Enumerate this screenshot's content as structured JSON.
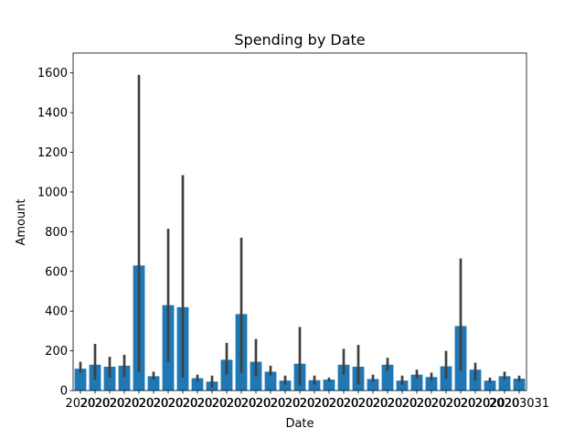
{
  "chart_data": {
    "type": "bar",
    "title": "Spending by Date",
    "xlabel": "Date",
    "ylabel": "Amount",
    "ylim": [
      0,
      1700
    ],
    "yticks": [
      0,
      200,
      400,
      600,
      800,
      1000,
      1200,
      1400,
      1600
    ],
    "bar_color": "#1f77b4",
    "errorbar_color": "#404040",
    "grid": false,
    "legend": "none",
    "xtick_labels_overlapping": [
      "2020",
      "2020",
      "2020",
      "2020",
      "2020",
      "2020",
      "2020",
      "2020",
      "2020",
      "2020",
      "2020",
      "2020",
      "2020",
      "2020",
      "2020",
      "2020",
      "2020",
      "2020",
      "2020",
      "2020",
      "2020",
      "2020",
      "2020",
      "2020",
      "2020",
      "2020",
      "2020",
      "2020",
      "2020",
      "2020",
      "2020"
    ],
    "x_last_visible_fragment": "3031",
    "values": [
      110,
      130,
      120,
      125,
      630,
      72,
      430,
      420,
      62,
      45,
      155,
      385,
      145,
      95,
      50,
      135,
      52,
      55,
      130,
      120,
      58,
      130,
      50,
      80,
      68,
      122,
      325,
      105,
      50,
      72,
      60
    ],
    "ci_low": [
      90,
      55,
      65,
      70,
      95,
      55,
      145,
      65,
      45,
      15,
      80,
      90,
      70,
      75,
      30,
      25,
      30,
      45,
      80,
      30,
      45,
      100,
      30,
      60,
      50,
      60,
      100,
      50,
      40,
      55,
      45
    ],
    "ci_high": [
      145,
      235,
      170,
      180,
      1590,
      95,
      815,
      1085,
      80,
      75,
      240,
      770,
      260,
      125,
      75,
      320,
      75,
      65,
      210,
      230,
      80,
      165,
      75,
      105,
      90,
      200,
      665,
      140,
      65,
      95,
      75
    ]
  }
}
